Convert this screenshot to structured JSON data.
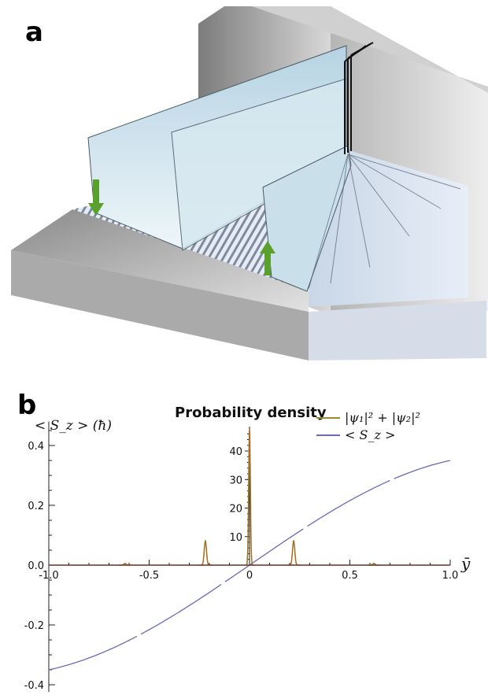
{
  "panel_a": {
    "label": "a",
    "colors": {
      "wall": "#9a9a9a",
      "wave_fill": "#cfe3ec",
      "wave_edge": "#3b4b55",
      "arrow": "#5aa02c",
      "slit": "#111111"
    }
  },
  "panel_b": {
    "label": "b",
    "title": "Probability density",
    "left_axis_label": "< S_z > (ħ)",
    "right_x_label": "ȳ",
    "legend": [
      {
        "label": "|ψ₁|² + |ψ₂|²",
        "color": "#9b8a2e"
      },
      {
        "label": "< S_z >",
        "color": "#6a6ab8"
      }
    ]
  },
  "chart_data": {
    "type": "line",
    "title": "Probability density",
    "xlabel": "ȳ",
    "ylabel": "< S_z > (ħ)",
    "xlim": [
      -1.0,
      1.0
    ],
    "ylim_left": [
      -0.45,
      0.48
    ],
    "ylim_density": [
      0,
      48
    ],
    "x_ticks": [
      "-1.0",
      "-0.5",
      "0",
      "0.5",
      "1.0"
    ],
    "y_ticks_left": [
      "0.4",
      "0.2",
      "0.0",
      "-0.2",
      "-0.4"
    ],
    "y_ticks_density": [
      "40",
      "30",
      "20",
      "10"
    ],
    "series": [
      {
        "name": "|ψ₁|² + |ψ₂|²",
        "color": "#9b8a2e",
        "peaks": [
          {
            "x": -0.62,
            "y": 0.6
          },
          {
            "x": -0.22,
            "y": 8.5
          },
          {
            "x": 0.0,
            "y": 47.5
          },
          {
            "x": 0.22,
            "y": 8.5
          },
          {
            "x": 0.62,
            "y": 0.6
          }
        ]
      },
      {
        "name": "< S_z >",
        "color": "#6a6ab8",
        "x": [
          -1.0,
          -0.8,
          -0.6,
          -0.4,
          -0.2,
          0.0,
          0.2,
          0.4,
          0.6,
          0.8,
          1.0
        ],
        "y": [
          -0.35,
          -0.3,
          -0.24,
          -0.16,
          -0.08,
          0.0,
          0.08,
          0.16,
          0.24,
          0.3,
          0.35
        ]
      }
    ]
  }
}
